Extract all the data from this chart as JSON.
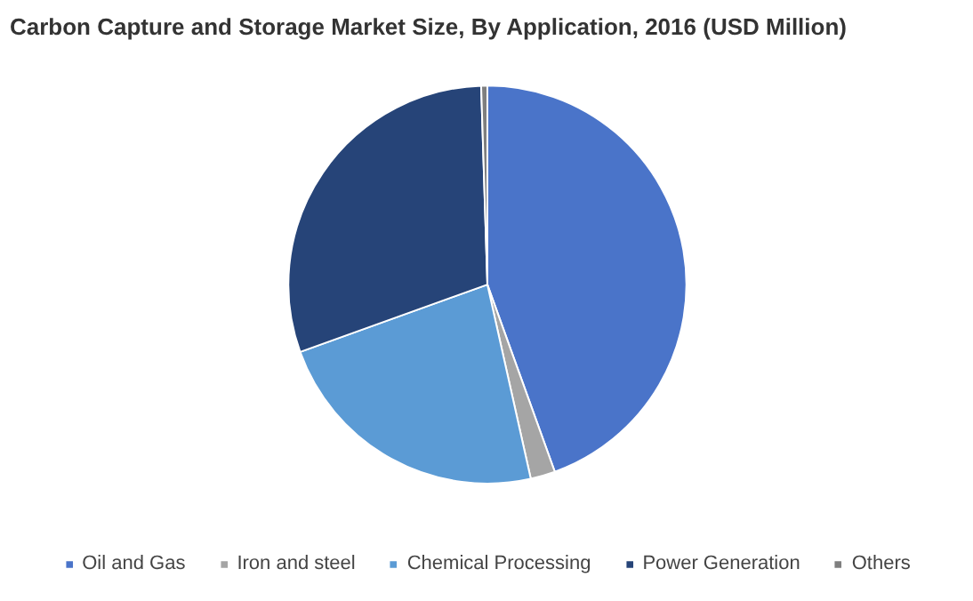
{
  "chart_data": {
    "type": "pie",
    "title": "Carbon Capture and Storage Market Size, By Application, 2016 (USD Million)",
    "categories": [
      "Oil and Gas",
      "Iron and steel",
      "Chemical Processing",
      "Power Generation",
      "Others"
    ],
    "values": [
      44.5,
      2,
      23,
      30,
      0.5
    ],
    "colors": [
      "#4a74c9",
      "#a5a5a5",
      "#5b9bd5",
      "#264478",
      "#7f7f7f"
    ],
    "legend": "bottom"
  }
}
